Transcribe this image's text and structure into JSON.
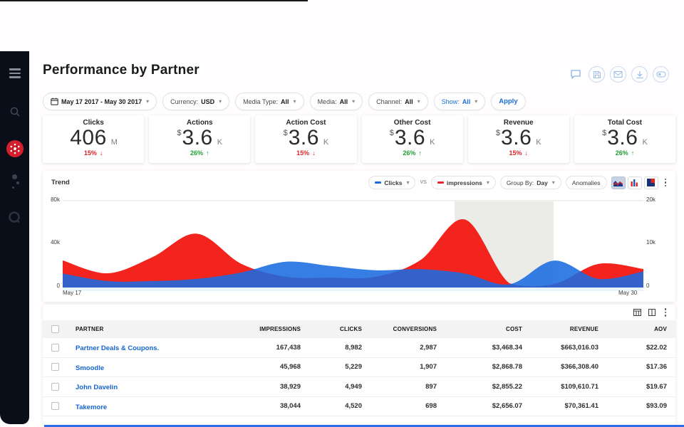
{
  "header": {
    "title": "Performance by Partner",
    "action_icons": [
      "comment-icon",
      "save-icon",
      "email-icon",
      "download-icon",
      "share-link-icon"
    ]
  },
  "sidebar": {
    "icons": [
      "menu-icon",
      "search-icon",
      "brand-logo",
      "more-dots-icon",
      "q-icon"
    ],
    "bg_color": "#0a0e18",
    "logo_color": "#d41f2c"
  },
  "filters": {
    "date_range": "May 17 2017 - May 30 2017",
    "items": [
      {
        "label": "Currency:",
        "value": "USD"
      },
      {
        "label": "Media Type:",
        "value": "All"
      },
      {
        "label": "Media:",
        "value": "All"
      },
      {
        "label": "Channel:",
        "value": "All"
      },
      {
        "label": "Show:",
        "value": "All"
      }
    ],
    "apply_label": "Apply"
  },
  "kpis": [
    {
      "label": "Clicks",
      "currency": "",
      "value": "406",
      "unit": "M",
      "delta": "15%",
      "arrow": "↓",
      "direction": "down",
      "delta_color": "#d8262c"
    },
    {
      "label": "Actions",
      "currency": "$",
      "value": "3.6",
      "unit": "K",
      "delta": "26%",
      "arrow": "↑",
      "direction": "up",
      "delta_color": "#1e9e33"
    },
    {
      "label": "Action Cost",
      "currency": "$",
      "value": "3.6",
      "unit": "K",
      "delta": "15%",
      "arrow": "↓",
      "direction": "down",
      "delta_color": "#d8262c"
    },
    {
      "label": "Other Cost",
      "currency": "$",
      "value": "3.6",
      "unit": "K",
      "delta": "26%",
      "arrow": "↑",
      "direction": "up",
      "delta_color": "#1e9e33"
    },
    {
      "label": "Revenue",
      "currency": "$",
      "value": "3.6",
      "unit": "K",
      "delta": "15%",
      "arrow": "↓",
      "direction": "down",
      "delta_color": "#d8262c"
    },
    {
      "label": "Total Cost",
      "currency": "$",
      "value": "3.6",
      "unit": "K",
      "delta": "26%",
      "arrow": "↑",
      "direction": "up",
      "delta_color": "#1e9e33"
    }
  ],
  "trend": {
    "title": "Trend",
    "series_a_label": "Clicks",
    "series_a_color": "#1a6be0",
    "vs_label": "VS",
    "series_b_label": "impressions",
    "series_b_color": "#e8262b",
    "group_by_label": "Group By:",
    "group_by_value": "Day",
    "anomalies_label": "Anomalies"
  },
  "chart_data": {
    "type": "area",
    "title": "Trend",
    "x": [
      "May 17",
      "May 18",
      "May 19",
      "May 20",
      "May 21",
      "May 22",
      "May 23",
      "May 24",
      "May 25",
      "May 26",
      "May 27",
      "May 28",
      "May 29",
      "May 30"
    ],
    "x_visible": [
      "May 17",
      "May 30"
    ],
    "series": [
      {
        "name": "Impressions",
        "color": "#f2241d",
        "axis": "right",
        "opacity": 1,
        "values": [
          6.3,
          3.3,
          7.0,
          12.5,
          5.5,
          2.5,
          2.3,
          2.5,
          6.3,
          15.8,
          1.0,
          0.8,
          5.5,
          4.3
        ]
      },
      {
        "name": "Clicks",
        "color": "#1a6be0",
        "axis": "left",
        "opacity": 0.88,
        "values": [
          13,
          6,
          6,
          8,
          14,
          24,
          20,
          16,
          17,
          13,
          3,
          25,
          8,
          15
        ]
      }
    ],
    "left_axis": {
      "max": 80,
      "ticks": [
        "80k",
        "40k",
        "0"
      ]
    },
    "right_axis": {
      "max": 20,
      "ticks": [
        "20k",
        "10k",
        "0"
      ]
    },
    "units": "thousands",
    "grid": false,
    "anomaly_band": {
      "start_frac": 0.675,
      "end_frac": 0.845
    }
  },
  "table": {
    "columns": [
      "PARTNER",
      "IMPRESSIONS",
      "CLICKS",
      "CONVERSIONS",
      "COST",
      "REVENUE",
      "AOV"
    ],
    "toolbar_icons": [
      "grid-view-icon",
      "columns-icon",
      "more-options-icon"
    ],
    "rows": [
      {
        "partner": "Partner Deals & Coupons.",
        "values": [
          "167,438",
          "8,982",
          "2,987",
          "$3,468.34",
          "$663,016.03",
          "$22.02"
        ]
      },
      {
        "partner": "Smoodle",
        "values": [
          "45,968",
          "5,229",
          "1,907",
          "$2,868.78",
          "$366,308.40",
          "$17.36"
        ]
      },
      {
        "partner": "John Davelin",
        "values": [
          "38,929",
          "4,949",
          "897",
          "$2,855.22",
          "$109,610.71",
          "$19.67"
        ]
      },
      {
        "partner": "Takemore",
        "values": [
          "38,044",
          "4,520",
          "698",
          "$2,656.07",
          "$70,361.41",
          "$93.09"
        ]
      }
    ]
  }
}
